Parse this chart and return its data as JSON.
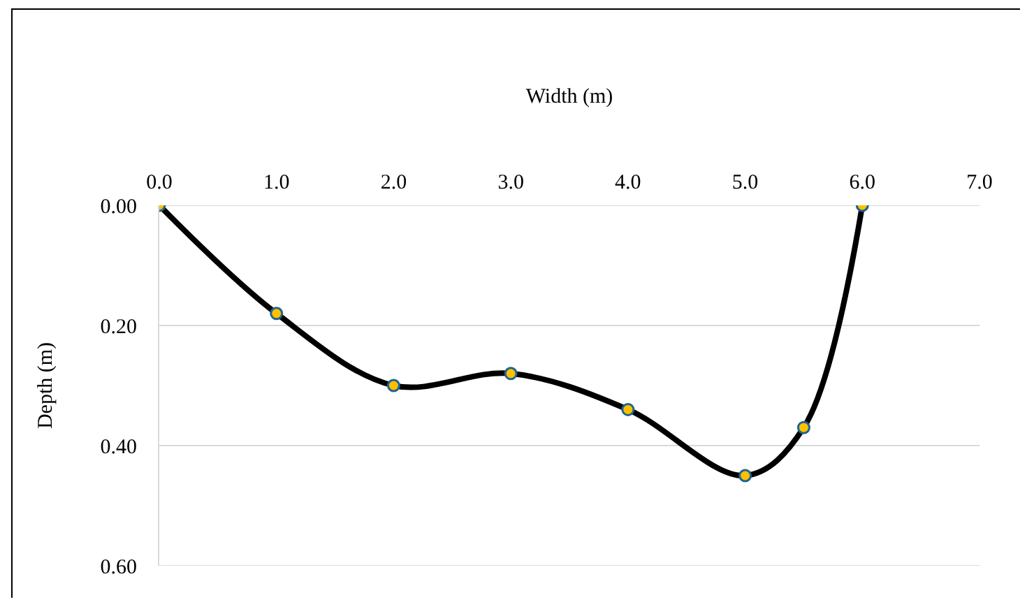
{
  "chart_data": {
    "type": "line",
    "xlabel": "Width (m)",
    "ylabel": "Depth (m)",
    "x": [
      0,
      1,
      2,
      3,
      4,
      5,
      5.5,
      6
    ],
    "series": [
      {
        "color": "#000000",
        "values": [
          0,
          0.18,
          0.3,
          0.28,
          0.34,
          0.45,
          0.37,
          0
        ]
      }
    ],
    "xlim": [
      0,
      7
    ],
    "xticks": [
      {
        "value": 0,
        "label": "0.0"
      },
      {
        "value": 1,
        "label": "1.0"
      },
      {
        "value": 2,
        "label": "2.0"
      },
      {
        "value": 3,
        "label": "3.0"
      },
      {
        "value": 4,
        "label": "4.0"
      },
      {
        "value": 5,
        "label": "5.0"
      },
      {
        "value": 6,
        "label": "6.0"
      },
      {
        "value": 7,
        "label": "7.0"
      }
    ],
    "ylim": [
      0.6,
      0
    ],
    "yticks": [
      {
        "value": 0,
        "label": "0.00"
      },
      {
        "value": 0.2,
        "label": "0.20"
      },
      {
        "value": 0.4,
        "label": "0.40"
      },
      {
        "value": 0.6,
        "label": "0.60"
      }
    ],
    "grid": "y",
    "marker": "circle",
    "line_style": "solid"
  }
}
